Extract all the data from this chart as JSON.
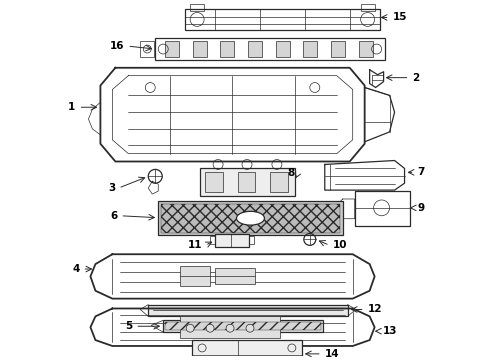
{
  "bg_color": "#f5f5f5",
  "line_color": "#2a2a2a",
  "label_color": "#000000",
  "lw_thin": 0.5,
  "lw_med": 0.9,
  "lw_thick": 1.3,
  "label_fs": 7.5
}
